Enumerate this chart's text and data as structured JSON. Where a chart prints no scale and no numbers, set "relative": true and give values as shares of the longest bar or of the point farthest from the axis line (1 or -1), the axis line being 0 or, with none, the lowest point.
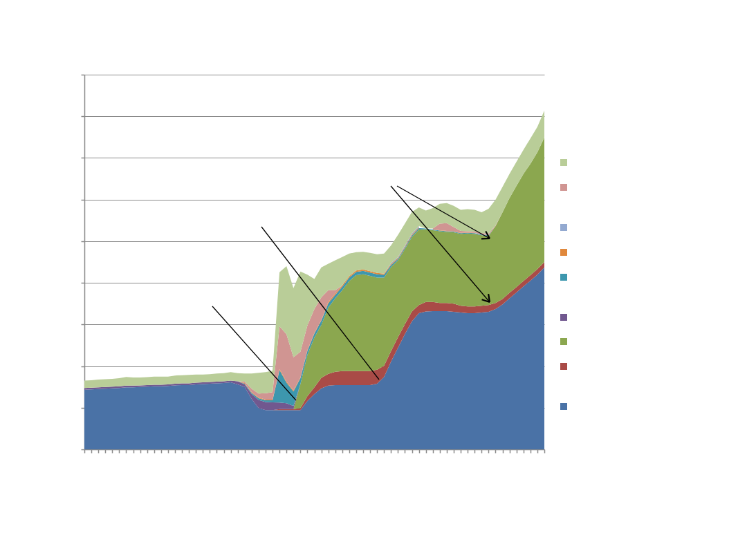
{
  "chart_data": {
    "type": "area",
    "relative": true,
    "stacked": true,
    "grid": "y",
    "categories": [
      null,
      null,
      null,
      null,
      null,
      null,
      null,
      null,
      null,
      null,
      null,
      null,
      null,
      null,
      null,
      null,
      null,
      null,
      null,
      null,
      null,
      null,
      null,
      null,
      null,
      null,
      null,
      null,
      null,
      null,
      null,
      null,
      null,
      null,
      null,
      null,
      null,
      null,
      null,
      null,
      null,
      null,
      null,
      null,
      null,
      null,
      null,
      null,
      null,
      null,
      null,
      null,
      null,
      null,
      null,
      null,
      null,
      null,
      null,
      null,
      null,
      null,
      null,
      null,
      null,
      null,
      null
    ],
    "series": [
      {
        "color": "#4a72a6",
        "values": [
          0.176,
          0.177,
          0.178,
          0.179,
          0.18,
          0.181,
          0.183,
          0.183,
          0.184,
          0.185,
          0.186,
          0.186,
          0.187,
          0.189,
          0.19,
          0.19,
          0.192,
          0.193,
          0.194,
          0.195,
          0.196,
          0.198,
          0.192,
          0.184,
          0.149,
          0.122,
          0.116,
          0.116,
          0.116,
          0.116,
          0.116,
          0.116,
          0.143,
          0.163,
          0.18,
          0.188,
          0.19,
          0.19,
          0.19,
          0.19,
          0.19,
          0.19,
          0.194,
          0.214,
          0.259,
          0.3,
          0.341,
          0.378,
          0.402,
          0.407,
          0.408,
          0.408,
          0.408,
          0.406,
          0.404,
          0.402,
          0.402,
          0.404,
          0.406,
          0.414,
          0.428,
          0.446,
          0.463,
          0.481,
          0.498,
          0.516,
          0.537
        ]
      },
      {
        "color": "#a94b47",
        "values": [
          null,
          null,
          null,
          null,
          null,
          null,
          null,
          null,
          null,
          null,
          null,
          null,
          null,
          null,
          null,
          null,
          null,
          null,
          null,
          null,
          null,
          null,
          null,
          null,
          null,
          null,
          null,
          0,
          0.003,
          0.003,
          0.003,
          0.006,
          0.014,
          0.02,
          0.031,
          0.035,
          0.039,
          0.041,
          0.041,
          0.041,
          0.041,
          0.041,
          0.041,
          0.033,
          0.031,
          0.031,
          0.029,
          0.029,
          0.024,
          0.028,
          0.027,
          0.024,
          0.024,
          0.024,
          0.02,
          0.02,
          0.02,
          0.02,
          0.02,
          0.018,
          0.016,
          0.016,
          0.016,
          0.016,
          0.016,
          0.016,
          0.016
        ]
      },
      {
        "color": "#8ba74f",
        "values": [
          null,
          null,
          null,
          null,
          null,
          null,
          null,
          null,
          null,
          null,
          null,
          null,
          null,
          null,
          null,
          null,
          null,
          null,
          null,
          null,
          null,
          null,
          null,
          null,
          null,
          null,
          null,
          null,
          null,
          null,
          0,
          0.071,
          0.122,
          0.147,
          0.157,
          0.196,
          0.217,
          0.239,
          0.266,
          0.283,
          0.286,
          0.281,
          0.272,
          0.26,
          0.248,
          0.227,
          0.222,
          0.22,
          0.223,
          0.215,
          0.212,
          0.212,
          0.21,
          0.211,
          0.212,
          0.215,
          0.214,
          0.208,
          0.204,
          0.227,
          0.256,
          0.28,
          0.299,
          0.316,
          0.329,
          0.345,
          0.368
        ]
      },
      {
        "color": "#71588f",
        "values": [
          0.005,
          0.005,
          0.005,
          0.005,
          0.005,
          0.005,
          0.005,
          0.005,
          0.005,
          0.005,
          0.005,
          0.005,
          0.005,
          0.005,
          0.005,
          0.005,
          0.005,
          0.005,
          0.005,
          0.005,
          0.005,
          0.005,
          0.009,
          0.008,
          0.014,
          0.024,
          0.024,
          0.023,
          0.019,
          0.017,
          0.009,
          0,
          null,
          null,
          null,
          null,
          null,
          null,
          null,
          null,
          null,
          null,
          null,
          null,
          null,
          null,
          null,
          null,
          null,
          null,
          null,
          null,
          null,
          null,
          null,
          null,
          null,
          null,
          null,
          null,
          null,
          null,
          null,
          null,
          null,
          null,
          null
        ]
      },
      {
        "color": "#3d97ae",
        "values": [
          null,
          null,
          null,
          null,
          null,
          null,
          null,
          null,
          null,
          null,
          null,
          null,
          null,
          null,
          null,
          null,
          null,
          null,
          null,
          null,
          null,
          null,
          0,
          0.002,
          0.004,
          0.005,
          0.005,
          0.006,
          0.096,
          0.061,
          0.043,
          0.017,
          0.012,
          0.012,
          0.012,
          0.012,
          0.01,
          0.01,
          0.01,
          0.01,
          0.01,
          0.01,
          0.01,
          0.008,
          0.006,
          0.004,
          0.004,
          0.004,
          0.004,
          0.002,
          0.002,
          0.002,
          0.002,
          0.002,
          0.002,
          0.002,
          0.002,
          0.002,
          0.002,
          0,
          null,
          null,
          null,
          null,
          null,
          null,
          null
        ]
      },
      {
        "color": "#e0883c",
        "values": [
          null,
          null,
          null,
          null,
          null,
          null,
          null,
          null,
          null,
          null,
          null,
          null,
          null,
          null,
          null,
          null,
          null,
          null,
          null,
          null,
          null,
          null,
          0,
          0.002,
          0.002,
          0.002,
          0.002,
          0.002,
          0.003,
          0.003,
          0.003,
          0.002,
          0.002,
          0.002,
          0.002,
          0.004,
          0.004,
          0.004,
          0.004,
          0.004,
          0.004,
          0.004,
          0.004,
          0.004,
          0.003,
          0.003,
          0.003,
          0.003,
          0.003,
          null,
          0.001,
          0.001,
          0.001,
          0.001,
          0.001,
          0.001,
          0.001,
          null,
          0.001,
          0,
          null,
          null,
          null,
          null,
          null,
          null,
          null
        ]
      },
      {
        "color": "#93a9d0",
        "values": [
          null,
          null,
          null,
          null,
          null,
          null,
          null,
          null,
          null,
          null,
          null,
          null,
          null,
          null,
          null,
          null,
          null,
          null,
          null,
          null,
          null,
          null,
          null,
          null,
          null,
          null,
          null,
          null,
          null,
          null,
          null,
          null,
          null,
          null,
          null,
          null,
          null,
          null,
          null,
          null,
          null,
          null,
          null,
          0,
          0.003,
          0.003,
          0.003,
          0.003,
          0.003,
          null,
          null,
          null,
          null,
          null,
          null,
          null,
          null,
          null,
          null,
          null,
          null,
          null,
          null,
          null,
          null,
          null,
          null
        ]
      },
      {
        "color": "#d09592",
        "values": [
          null,
          null,
          null,
          null,
          null,
          null,
          null,
          null,
          null,
          null,
          null,
          null,
          null,
          null,
          null,
          null,
          null,
          null,
          null,
          null,
          null,
          null,
          0,
          0.004,
          0.01,
          0.012,
          0.019,
          0.022,
          0.126,
          0.14,
          0.098,
          0.076,
          0.073,
          0.07,
          0.067,
          0.035,
          0.01,
          0,
          null,
          null,
          null,
          null,
          null,
          null,
          null,
          null,
          null,
          null,
          null,
          null,
          0.002,
          0.019,
          0.023,
          0.012,
          0.006,
          0.004,
          0.004,
          0.004,
          0.004,
          0.002,
          0,
          null,
          null,
          null,
          null,
          null,
          null
        ]
      },
      {
        "color": "#b9cd98",
        "values": [
          0.022,
          0.022,
          0.023,
          0.023,
          0.023,
          0.024,
          0.026,
          0.024,
          0.023,
          0.023,
          0.024,
          0.024,
          0.023,
          0.024,
          0.024,
          0.025,
          0.024,
          0.023,
          0.023,
          0.024,
          0.024,
          0.025,
          0.024,
          0.024,
          0.045,
          0.061,
          0.062,
          0.063,
          0.16,
          0.201,
          0.204,
          0.237,
          0.15,
          0.089,
          0.088,
          0.078,
          0.088,
          0.084,
          0.067,
          0.054,
          0.052,
          0.054,
          0.055,
          0.059,
          0.052,
          0.065,
          0.065,
          0.064,
          0.055,
          0.053,
          0.06,
          0.059,
          0.059,
          0.063,
          0.062,
          0.065,
          0.064,
          0.062,
          0.073,
          0.076,
          0.075,
          0.071,
          0.071,
          0.071,
          0.075,
          0.075,
          0.079
        ]
      }
    ]
  }
}
